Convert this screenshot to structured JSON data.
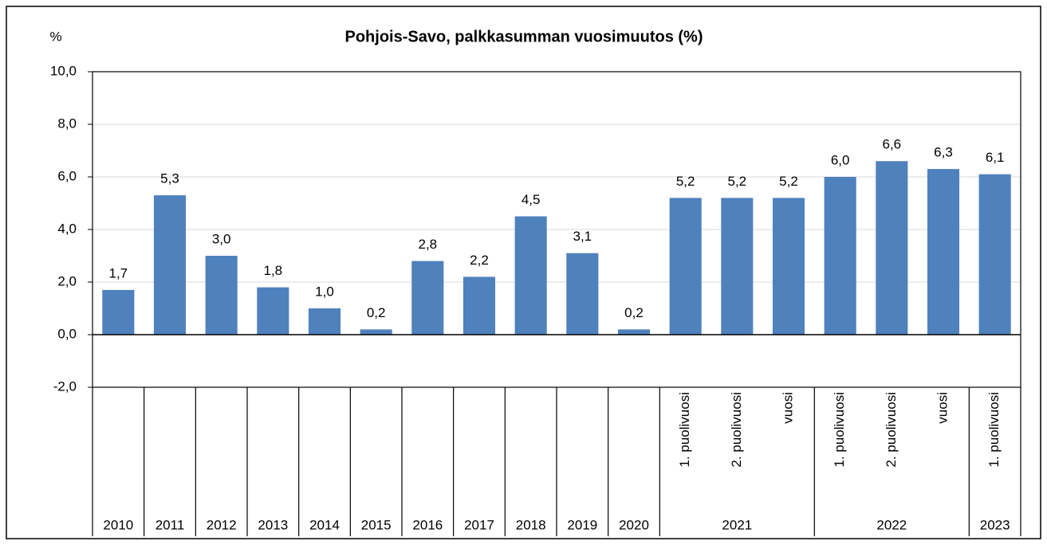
{
  "chart_data": {
    "type": "bar",
    "title": "Pohjois-Savo, palkkasumman vuosimuutos (%)",
    "y_label": "%",
    "groups": [
      {
        "label": "2010",
        "categories": [
          null
        ]
      },
      {
        "label": "2011",
        "categories": [
          null
        ]
      },
      {
        "label": "2012",
        "categories": [
          null
        ]
      },
      {
        "label": "2013",
        "categories": [
          null
        ]
      },
      {
        "label": "2014",
        "categories": [
          null
        ]
      },
      {
        "label": "2015",
        "categories": [
          null
        ]
      },
      {
        "label": "2016",
        "categories": [
          null
        ]
      },
      {
        "label": "2017",
        "categories": [
          null
        ]
      },
      {
        "label": "2018",
        "categories": [
          null
        ]
      },
      {
        "label": "2019",
        "categories": [
          null
        ]
      },
      {
        "label": "2020",
        "categories": [
          null
        ]
      },
      {
        "label": "2021",
        "categories": [
          "1. puolivuosi",
          "2. puolivuosi",
          "vuosi"
        ]
      },
      {
        "label": "2022",
        "categories": [
          "1. puolivuosi",
          "2. puolivuosi",
          "vuosi"
        ]
      },
      {
        "label": "2023",
        "categories": [
          "1. puolivuosi"
        ]
      }
    ],
    "values": [
      1.7,
      5.3,
      3.0,
      1.8,
      1.0,
      0.2,
      2.8,
      2.2,
      4.5,
      3.1,
      0.2,
      5.2,
      5.2,
      5.2,
      6.0,
      6.6,
      6.3,
      6.1
    ],
    "value_labels": [
      "1,7",
      "5,3",
      "3,0",
      "1,8",
      "1,0",
      "0,2",
      "2,8",
      "2,2",
      "4,5",
      "3,1",
      "0,2",
      "5,2",
      "5,2",
      "5,2",
      "6,0",
      "6,6",
      "6,3",
      "6,1"
    ],
    "color": "#4f81bd",
    "ylim": [
      -2,
      10
    ],
    "yticks": [
      {
        "value": -2,
        "label": "-2,0"
      },
      {
        "value": 0,
        "label": "0,0"
      },
      {
        "value": 2,
        "label": "2,0"
      },
      {
        "value": 4,
        "label": "4,0"
      },
      {
        "value": 6,
        "label": "6,0"
      },
      {
        "value": 8,
        "label": "8,0"
      },
      {
        "value": 10,
        "label": "10,0"
      }
    ],
    "grid": true
  }
}
